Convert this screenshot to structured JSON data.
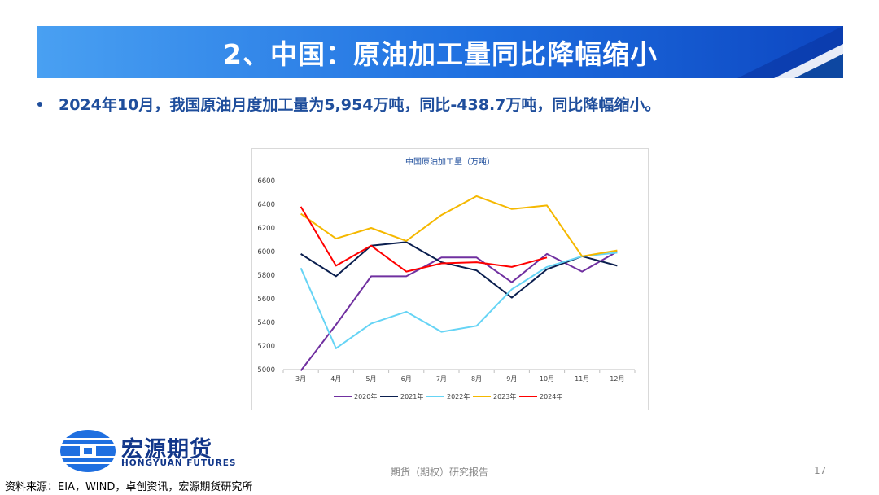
{
  "slide": {
    "title": "2、中国：原油加工量同比降幅缩小",
    "bullet": "2024年10月，我国原油月度加工量为5,954万吨，同比-438.7万吨，同比降幅缩小。",
    "footer_center": "期货（期权）研究报告",
    "page_number": "17",
    "source": "资料来源：EIA，WIND，卓创资讯，宏源期货研究所",
    "brand_cn": "宏源期货",
    "brand_en": "HONGYUAN FUTURES"
  },
  "colors": {
    "title_bg": "#1565d8",
    "title_accent": "#0d47a1",
    "bullet_text": "#1f4e9c",
    "brand": "#12378a"
  },
  "chart_data": {
    "type": "line",
    "title": "中国原油加工量（万吨）",
    "categories": [
      "3月",
      "4月",
      "5月",
      "6月",
      "7月",
      "8月",
      "9月",
      "10月",
      "11月",
      "12月"
    ],
    "ylim": [
      5000,
      6600
    ],
    "yticks": [
      5000,
      5200,
      5400,
      5600,
      5800,
      6000,
      6200,
      6400,
      6600
    ],
    "ytick_labels": [
      "5000",
      "5200",
      "5400",
      "5600",
      "5800",
      "6000",
      "6200",
      "6400",
      "6600"
    ],
    "legend_position": "bottom",
    "series": [
      {
        "name": "2020年",
        "color": "#7030a0",
        "values": [
          4990,
          5380,
          5790,
          5790,
          5950,
          5950,
          5740,
          5980,
          5830,
          6000
        ]
      },
      {
        "name": "2021年",
        "color": "#0b1f4f",
        "values": [
          5980,
          5790,
          6050,
          6080,
          5910,
          5840,
          5610,
          5850,
          5960,
          5880
        ]
      },
      {
        "name": "2022年",
        "color": "#66d4f5",
        "values": [
          5860,
          5180,
          5390,
          5490,
          5320,
          5370,
          5680,
          5870,
          5960,
          5990
        ]
      },
      {
        "name": "2023年",
        "color": "#f5b800",
        "values": [
          6320,
          6110,
          6200,
          6090,
          6310,
          6470,
          6360,
          6390,
          5960,
          6010
        ]
      },
      {
        "name": "2024年",
        "color": "#ff0000",
        "values": [
          6380,
          5880,
          6050,
          5830,
          5900,
          5910,
          5870,
          5950,
          null,
          null
        ]
      }
    ]
  }
}
